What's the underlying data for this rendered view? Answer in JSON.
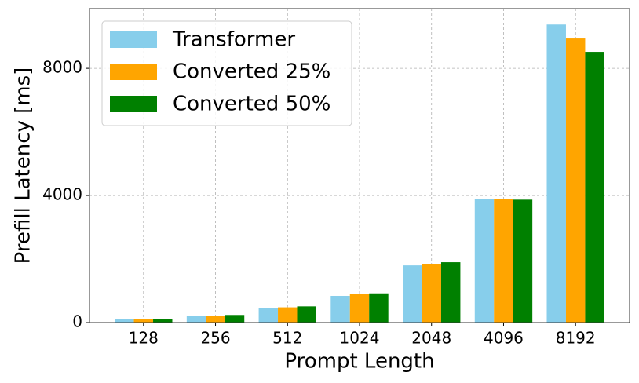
{
  "chart_data": {
    "type": "bar",
    "x_label": "Prompt Length",
    "y_label": "Prefill Latency [ms]",
    "categories": [
      "128",
      "256",
      "512",
      "1024",
      "2048",
      "4096",
      "8192"
    ],
    "series": [
      {
        "name": "Transformer",
        "color": "#87ceeb",
        "values": [
          100,
          200,
          450,
          840,
          1800,
          3900,
          9380
        ]
      },
      {
        "name": "Converted 25%",
        "color": "#ffa500",
        "values": [
          110,
          210,
          480,
          890,
          1830,
          3880,
          8940
        ]
      },
      {
        "name": "Converted 50%",
        "color": "#008000",
        "values": [
          120,
          240,
          510,
          920,
          1900,
          3870,
          8520
        ]
      }
    ],
    "ylim": [
      0,
      9880
    ],
    "yticks": [
      0,
      4000,
      8000
    ],
    "grid": true,
    "legend": "upper left"
  }
}
